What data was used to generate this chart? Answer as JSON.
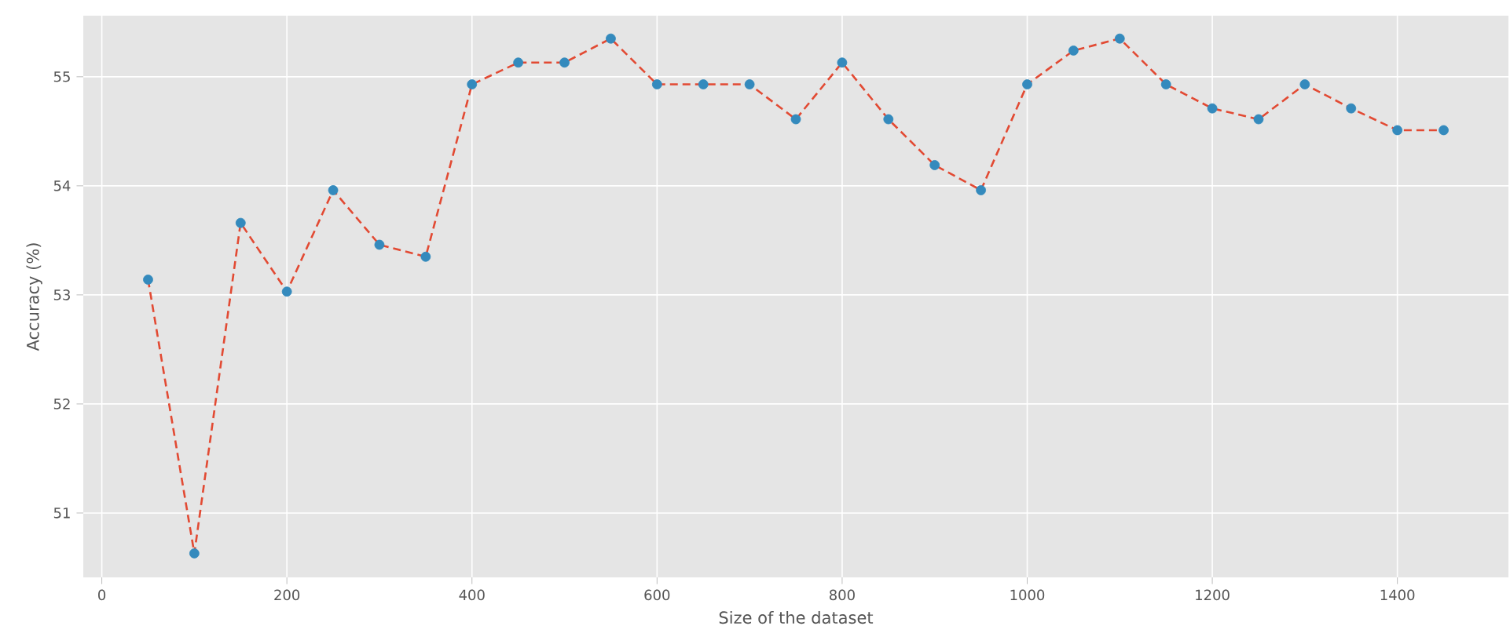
{
  "chart_data": {
    "type": "line",
    "xlabel": "Size of the dataset",
    "ylabel": "Accuracy (%)",
    "x": [
      50,
      100,
      150,
      200,
      250,
      300,
      350,
      400,
      450,
      500,
      550,
      600,
      650,
      700,
      750,
      800,
      850,
      900,
      950,
      1000,
      1050,
      1100,
      1150,
      1200,
      1250,
      1300,
      1350,
      1400,
      1450
    ],
    "series": [
      {
        "color": "#e24a33",
        "marker": "none",
        "values": [
          53.14,
          50.63,
          53.66,
          53.03,
          53.96,
          53.46,
          53.35,
          54.93,
          55.13,
          55.13,
          55.35,
          54.93,
          54.93,
          54.93,
          54.61,
          55.13,
          54.61,
          54.19,
          53.96,
          54.93,
          55.24,
          55.35,
          54.93,
          54.71,
          54.61,
          54.93,
          54.71,
          54.51,
          54.51
        ]
      },
      {
        "type": "scatter",
        "color": "#348abd",
        "marker": "circle",
        "values": [
          53.14,
          50.63,
          53.66,
          53.03,
          53.96,
          53.46,
          53.35,
          54.93,
          55.13,
          55.13,
          55.35,
          54.93,
          54.93,
          54.93,
          54.61,
          55.13,
          54.61,
          54.19,
          53.96,
          54.93,
          55.24,
          55.35,
          54.93,
          54.71,
          54.61,
          54.93,
          54.71,
          54.51,
          54.51
        ]
      }
    ],
    "xlim": [
      -20,
      1520
    ],
    "ylim": [
      50.41,
      55.56
    ],
    "xticks": [
      0,
      200,
      400,
      600,
      800,
      1000,
      1200,
      1400
    ],
    "yticks": [
      51,
      52,
      53,
      54,
      55
    ],
    "grid": true,
    "line_style": "dashed"
  }
}
